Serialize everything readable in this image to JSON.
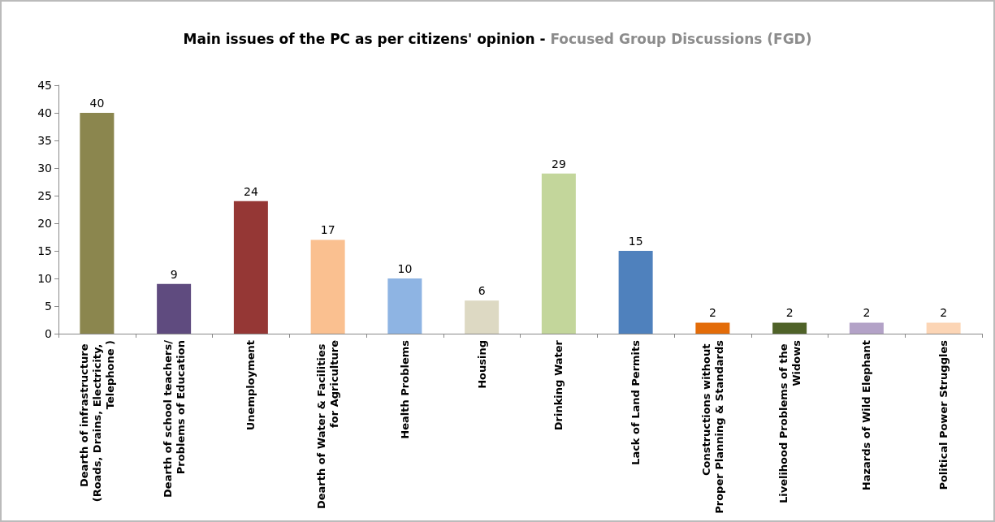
{
  "chart_data": {
    "type": "bar",
    "title": "Main issues of the PC as per citizens' opinion - ",
    "subtitle": "Focused Group Discussions (FGD)",
    "categories": [
      "Dearth of infrastructure (Roads, Drains, Electricity, Telephone )",
      "Dearth of school teachers/Problems of Education",
      "Unemployment",
      "Dearth of Water & Facilities for Agriculture",
      "Health Problems",
      "Housing",
      "Drinking Water",
      "Lack of Land Permits",
      "Constructions without Proper Planning & Standards",
      "Livelihood Problems of the Widows",
      "Hazards of Wild Elephant",
      "Political Power Struggles"
    ],
    "values": [
      40,
      9,
      24,
      17,
      10,
      6,
      29,
      15,
      2,
      2,
      2,
      2
    ],
    "colors": [
      "#8b864e",
      "#5f4b7f",
      "#953735",
      "#fac090",
      "#8eb4e3",
      "#ddd9c3",
      "#c3d69b",
      "#4f81bd",
      "#e36c09",
      "#4f6228",
      "#b3a2c7",
      "#fcd5b5"
    ],
    "ylim": [
      0,
      45
    ],
    "yticks": [
      0,
      5,
      10,
      15,
      20,
      25,
      30,
      35,
      40,
      45
    ],
    "grid": false,
    "data_labels": true
  }
}
